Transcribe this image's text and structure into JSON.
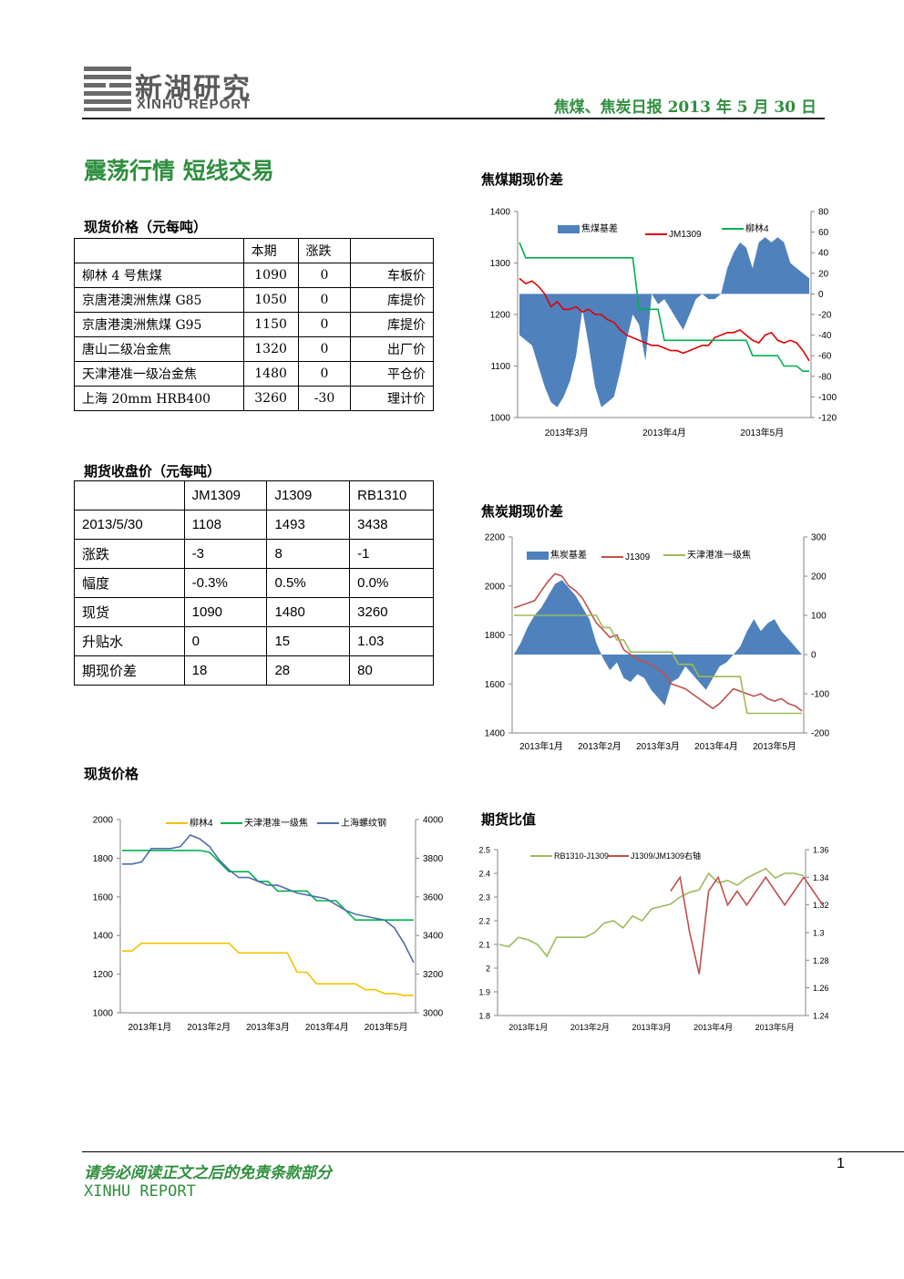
{
  "header": {
    "logo_cn": "新湖研究",
    "logo_en": "XINHU REPORT",
    "title": "焦煤、焦炭日报 2013 年 5 月 30 日"
  },
  "main_title": "震荡行情 短线交易",
  "spot": {
    "title": "现货价格（元每吨）",
    "headers": [
      "",
      "本期",
      "涨跌",
      ""
    ],
    "rows": [
      [
        "柳林 4 号焦煤",
        "1090",
        "0",
        "车板价"
      ],
      [
        "京唐港澳洲焦煤 G85",
        "1050",
        "0",
        "库提价"
      ],
      [
        "京唐港澳洲焦煤 G95",
        "1150",
        "0",
        "库提价"
      ],
      [
        "唐山二级冶金焦",
        "1320",
        "0",
        "出厂价"
      ],
      [
        "天津港准一级冶金焦",
        "1480",
        "0",
        "平仓价"
      ],
      [
        "上海 20mm HRB400",
        "3260",
        "-30",
        "理计价"
      ]
    ]
  },
  "futures": {
    "title": "期货收盘价（元每吨）",
    "headers": [
      "",
      "JM1309",
      "J1309",
      "RB1310"
    ],
    "rows": [
      [
        "2013/5/30",
        "1108",
        "1493",
        "3438"
      ],
      [
        "涨跌",
        "-3",
        "8",
        "-1"
      ],
      [
        "幅度",
        "-0.3%",
        "0.5%",
        "0.0%"
      ],
      [
        "现货",
        "1090",
        "1480",
        "3260"
      ],
      [
        "升贴水",
        "0",
        "15",
        "1.03"
      ],
      [
        "期现价差",
        "18",
        "28",
        "80"
      ]
    ]
  },
  "chart_titles": {
    "c1": "焦煤期现价差",
    "c2": "焦炭期现价差",
    "c3": "现货价格",
    "c4": "期货比值"
  },
  "chart_data": [
    {
      "type": "line",
      "title": "焦煤期现价差",
      "x_labels": [
        "2013年3月",
        "2013年4月",
        "2013年5月"
      ],
      "y_left": {
        "range": [
          1000,
          1400
        ],
        "ticks": [
          1000,
          1100,
          1200,
          1300,
          1400
        ]
      },
      "y_right": {
        "range": [
          -120,
          80
        ],
        "ticks": [
          -120,
          -100,
          -80,
          -60,
          -40,
          -20,
          0,
          20,
          40,
          60,
          80
        ]
      },
      "series": [
        {
          "name": "焦煤基差",
          "kind": "area",
          "axis": "right",
          "color": "#4f81bd",
          "values": [
            -40,
            -45,
            -50,
            -70,
            -90,
            -105,
            -110,
            -100,
            -85,
            -60,
            -15,
            -50,
            -90,
            -110,
            -105,
            -100,
            -75,
            -45,
            -20,
            -30,
            -65,
            0,
            -10,
            -5,
            -15,
            -25,
            -35,
            -20,
            -5,
            0,
            -5,
            -5,
            0,
            25,
            40,
            50,
            45,
            25,
            50,
            55,
            50,
            55,
            50,
            30,
            25,
            20,
            15
          ]
        },
        {
          "name": "JM1309",
          "kind": "line",
          "axis": "left",
          "color": "#e00000",
          "values": [
            1270,
            1260,
            1265,
            1255,
            1240,
            1215,
            1225,
            1210,
            1210,
            1215,
            1205,
            1210,
            1200,
            1200,
            1190,
            1185,
            1170,
            1160,
            1155,
            1150,
            1145,
            1140,
            1140,
            1135,
            1130,
            1130,
            1125,
            1130,
            1135,
            1140,
            1140,
            1155,
            1160,
            1165,
            1165,
            1170,
            1160,
            1150,
            1145,
            1160,
            1165,
            1150,
            1145,
            1150,
            1145,
            1130,
            1110
          ]
        },
        {
          "name": "柳林4",
          "kind": "line",
          "axis": "left",
          "color": "#00b050",
          "values": [
            1340,
            1310,
            1310,
            1310,
            1310,
            1310,
            1310,
            1310,
            1310,
            1310,
            1310,
            1310,
            1310,
            1310,
            1310,
            1310,
            1310,
            1310,
            1310,
            1210,
            1210,
            1210,
            1210,
            1150,
            1150,
            1150,
            1150,
            1150,
            1150,
            1150,
            1150,
            1150,
            1150,
            1150,
            1150,
            1150,
            1150,
            1120,
            1120,
            1120,
            1120,
            1120,
            1100,
            1100,
            1100,
            1090,
            1090
          ]
        }
      ]
    },
    {
      "type": "line",
      "title": "焦炭期现价差",
      "x_labels": [
        "2013年1月",
        "2013年2月",
        "2013年3月",
        "2013年4月",
        "2013年5月"
      ],
      "y_left": {
        "range": [
          1400,
          2200
        ],
        "ticks": [
          1400,
          1600,
          1800,
          2000,
          2200
        ]
      },
      "y_right": {
        "range": [
          -200,
          300
        ],
        "ticks": [
          -200,
          -100,
          0,
          100,
          200,
          300
        ]
      },
      "series": [
        {
          "name": "焦炭基差",
          "kind": "area",
          "axis": "right",
          "color": "#4f81bd",
          "values": [
            0,
            30,
            70,
            100,
            120,
            150,
            180,
            190,
            170,
            150,
            120,
            90,
            30,
            -10,
            -40,
            -20,
            -60,
            -70,
            -50,
            -60,
            -90,
            -110,
            -130,
            -70,
            -60,
            -30,
            -50,
            -70,
            -90,
            -60,
            -30,
            -20,
            0,
            20,
            60,
            90,
            60,
            80,
            90,
            60,
            40,
            20,
            0
          ]
        },
        {
          "name": "J1309",
          "kind": "line",
          "axis": "left",
          "color": "#c0504d",
          "values": [
            1910,
            1920,
            1930,
            1940,
            1980,
            2020,
            2050,
            2040,
            2000,
            1980,
            1950,
            1900,
            1850,
            1820,
            1790,
            1800,
            1740,
            1720,
            1700,
            1690,
            1680,
            1660,
            1640,
            1600,
            1590,
            1580,
            1560,
            1540,
            1520,
            1500,
            1520,
            1550,
            1580,
            1570,
            1560,
            1550,
            1560,
            1540,
            1530,
            1540,
            1520,
            1510,
            1490
          ]
        },
        {
          "name": "天津港准一级焦",
          "kind": "line",
          "axis": "left",
          "color": "#9bbb59",
          "values": [
            1880,
            1880,
            1880,
            1880,
            1880,
            1880,
            1880,
            1880,
            1880,
            1880,
            1880,
            1880,
            1880,
            1830,
            1830,
            1780,
            1780,
            1730,
            1730,
            1730,
            1730,
            1730,
            1730,
            1730,
            1680,
            1680,
            1680,
            1630,
            1630,
            1630,
            1630,
            1630,
            1630,
            1630,
            1480,
            1480,
            1480,
            1480,
            1480,
            1480,
            1480,
            1480,
            1480
          ]
        }
      ]
    },
    {
      "type": "line",
      "title": "现货价格",
      "x_labels": [
        "2013年1月",
        "2013年2月",
        "2013年3月",
        "2013年4月",
        "2013年5月"
      ],
      "y_left": {
        "range": [
          1000,
          2000
        ],
        "ticks": [
          1000,
          1200,
          1400,
          1600,
          1800,
          2000
        ]
      },
      "y_right": {
        "range": [
          3000,
          4000
        ],
        "ticks": [
          3000,
          3200,
          3400,
          3600,
          3800,
          4000
        ]
      },
      "series": [
        {
          "name": "柳林4",
          "kind": "line",
          "axis": "left",
          "color": "#f2c200",
          "values": [
            1320,
            1320,
            1360,
            1360,
            1360,
            1360,
            1360,
            1360,
            1360,
            1360,
            1360,
            1360,
            1310,
            1310,
            1310,
            1310,
            1310,
            1310,
            1210,
            1210,
            1150,
            1150,
            1150,
            1150,
            1150,
            1120,
            1120,
            1100,
            1100,
            1090,
            1090
          ]
        },
        {
          "name": "天津港准一级焦",
          "kind": "line",
          "axis": "left",
          "color": "#00b050",
          "values": [
            1840,
            1840,
            1840,
            1840,
            1840,
            1840,
            1840,
            1840,
            1840,
            1830,
            1780,
            1730,
            1730,
            1730,
            1680,
            1680,
            1630,
            1630,
            1630,
            1630,
            1580,
            1580,
            1580,
            1530,
            1480,
            1480,
            1480,
            1480,
            1480,
            1480,
            1480
          ]
        },
        {
          "name": "上海螺纹钢",
          "kind": "line",
          "axis": "right",
          "color": "#4f6fa8",
          "values": [
            3770,
            3770,
            3780,
            3850,
            3850,
            3850,
            3860,
            3920,
            3900,
            3860,
            3790,
            3740,
            3700,
            3700,
            3680,
            3660,
            3660,
            3640,
            3620,
            3610,
            3600,
            3590,
            3560,
            3530,
            3510,
            3500,
            3490,
            3480,
            3440,
            3360,
            3260
          ]
        }
      ]
    },
    {
      "type": "line",
      "title": "期货比值",
      "x_labels": [
        "2013年1月",
        "2013年2月",
        "2013年3月",
        "2013年4月",
        "2013年5月"
      ],
      "y_left": {
        "range": [
          1.8,
          2.5
        ],
        "ticks": [
          1.8,
          1.9,
          2,
          2.1,
          2.2,
          2.3,
          2.4,
          2.5
        ]
      },
      "y_right": {
        "range": [
          1.24,
          1.36
        ],
        "ticks": [
          1.24,
          1.26,
          1.28,
          1.3,
          1.32,
          1.34,
          1.36
        ]
      },
      "series": [
        {
          "name": "RB1310-J1309",
          "kind": "line",
          "axis": "left",
          "color": "#9bbb59",
          "values": [
            2.1,
            2.09,
            2.13,
            2.12,
            2.1,
            2.05,
            2.13,
            2.13,
            2.13,
            2.13,
            2.15,
            2.19,
            2.2,
            2.17,
            2.22,
            2.2,
            2.25,
            2.26,
            2.27,
            2.3,
            2.32,
            2.33,
            2.4,
            2.36,
            2.37,
            2.35,
            2.38,
            2.4,
            2.42,
            2.38,
            2.4,
            2.4,
            2.39
          ]
        },
        {
          "name": "J1309/JM1309右轴",
          "kind": "line",
          "axis": "right",
          "color": "#c0504d",
          "start": 18,
          "values": [
            1.33,
            1.34,
            1.3,
            1.27,
            1.33,
            1.34,
            1.32,
            1.33,
            1.32,
            1.33,
            1.34,
            1.33,
            1.32,
            1.33,
            1.34,
            1.33,
            1.32
          ]
        }
      ]
    }
  ]
}
